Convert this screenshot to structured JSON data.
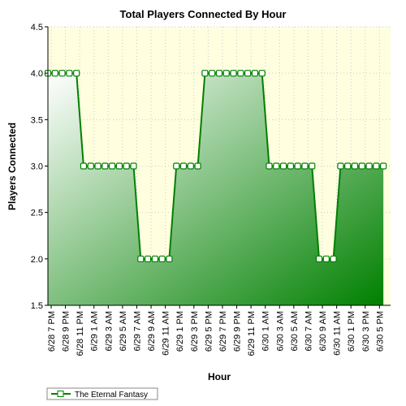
{
  "chart_data": {
    "type": "area",
    "title": "Total Players Connected By Hour",
    "xlabel": "Hour",
    "ylabel": "Players Connected",
    "ylim": [
      1.5,
      4.5
    ],
    "yticks": [
      "1.5",
      "2.0",
      "2.5",
      "3.0",
      "3.5",
      "4.0",
      "4.5"
    ],
    "grid": true,
    "legend_position": "bottom-left",
    "x_tick_labels": [
      "6/28 7 PM",
      "6/28 9 PM",
      "6/28 11 PM",
      "6/29 1 AM",
      "6/29 3 AM",
      "6/29 5 AM",
      "6/29 7 AM",
      "6/29 9 AM",
      "6/29 11 AM",
      "6/29 1 PM",
      "6/29 3 PM",
      "6/29 5 PM",
      "6/29 7 PM",
      "6/29 9 PM",
      "6/29 11 PM",
      "6/30 1 AM",
      "6/30 3 AM",
      "6/30 5 AM",
      "6/30 7 AM",
      "6/30 9 AM",
      "6/30 11 AM",
      "6/30 1 PM",
      "6/30 3 PM",
      "6/30 5 PM"
    ],
    "x_range": [
      "6/28 7 PM",
      "6/30 6 PM"
    ],
    "series": [
      {
        "name": "The Eternal Fantasy",
        "color": "#008000",
        "values": [
          4,
          4,
          4,
          4,
          4,
          3,
          3,
          3,
          3,
          3,
          3,
          3,
          3,
          2,
          2,
          2,
          2,
          2,
          3,
          3,
          3,
          3,
          4,
          4,
          4,
          4,
          4,
          4,
          4,
          4,
          4,
          3,
          3,
          3,
          3,
          3,
          3,
          3,
          2,
          2,
          2,
          3,
          3,
          3,
          3,
          3,
          3,
          3
        ]
      }
    ]
  },
  "colors": {
    "plot_background": "#ffffe0",
    "area_light": "#ffffff",
    "area_dark": "#008000",
    "line": "#008000",
    "grid": "#c8c8c8"
  }
}
